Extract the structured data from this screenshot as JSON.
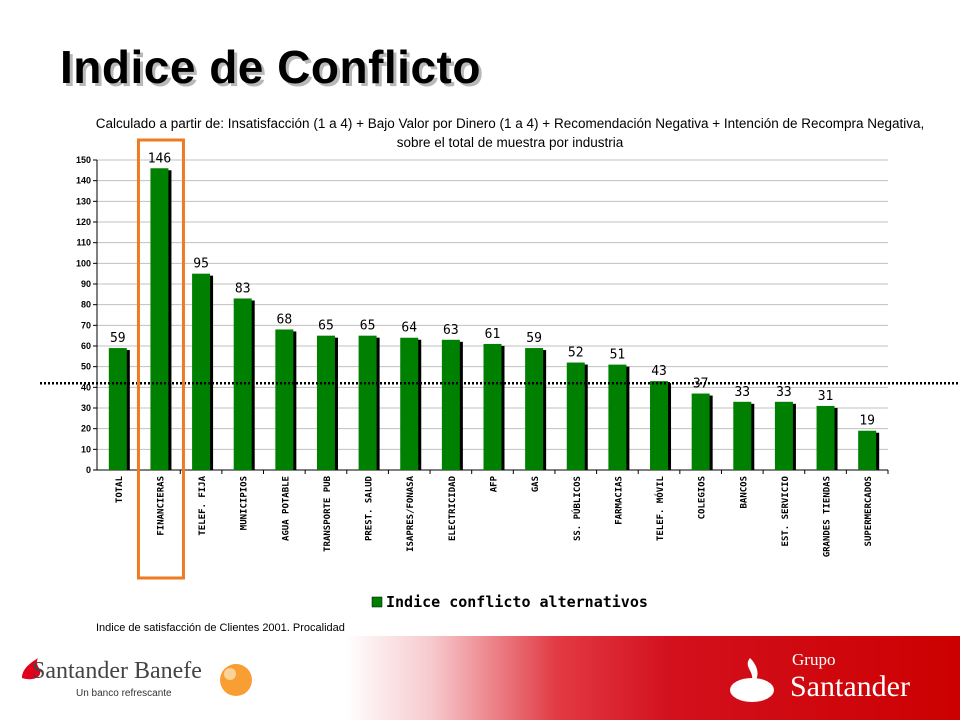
{
  "header": {
    "title": "Indice de Conflicto",
    "subtitle_line1": "Calculado a partir de: Insatisfacción (1 a 4) + Bajo Valor por Dinero (1 a 4) + Recomendación Negativa + Intención de Recompra Negativa,",
    "subtitle_line2": "sobre el total de muestra por industria"
  },
  "source_note": "Indice de satisfacción de Clientes 2001. Procalidad",
  "chart_data": {
    "type": "bar",
    "categories": [
      "TOTAL",
      "FINANCIERAS",
      "TELEF. FIJA",
      "MUNICIPIOS",
      "AGUA POTABLE",
      "TRANSPORTE PUB",
      "PREST. SALUD",
      "ISAPRES/FONASA",
      "ELECTRICIDAD",
      "AFP",
      "GAS",
      "SS. PÚBLICOS",
      "FARMACIAS",
      "TELEF. MÓVIL",
      "COLEGIOS",
      "BANCOS",
      "EST. SERVICIO",
      "GRANDES TIENDAS",
      "SUPERMERCADOS"
    ],
    "series": [
      {
        "name": "Indice conflicto alternativos",
        "values": [
          59,
          146,
          95,
          83,
          68,
          65,
          65,
          64,
          63,
          61,
          59,
          52,
          51,
          43,
          37,
          33,
          33,
          31,
          19
        ]
      }
    ],
    "ylim": [
      0,
      150
    ],
    "yticks": [
      0,
      10,
      20,
      30,
      40,
      50,
      60,
      70,
      80,
      90,
      100,
      110,
      120,
      130,
      140,
      150
    ],
    "reference_line": 42,
    "highlighted_category": "FINANCIERAS",
    "grid": true,
    "legend": "bottom-center",
    "colors": {
      "bar": "#008000",
      "bar_shadow": "#000000",
      "highlight": "#ee7a22",
      "reference": "#000000"
    }
  },
  "footer": {
    "left_brand": "Santander Banefe",
    "left_tagline": "Un banco refrescante",
    "right_brand_top": "Grupo",
    "right_brand": "Santander"
  }
}
